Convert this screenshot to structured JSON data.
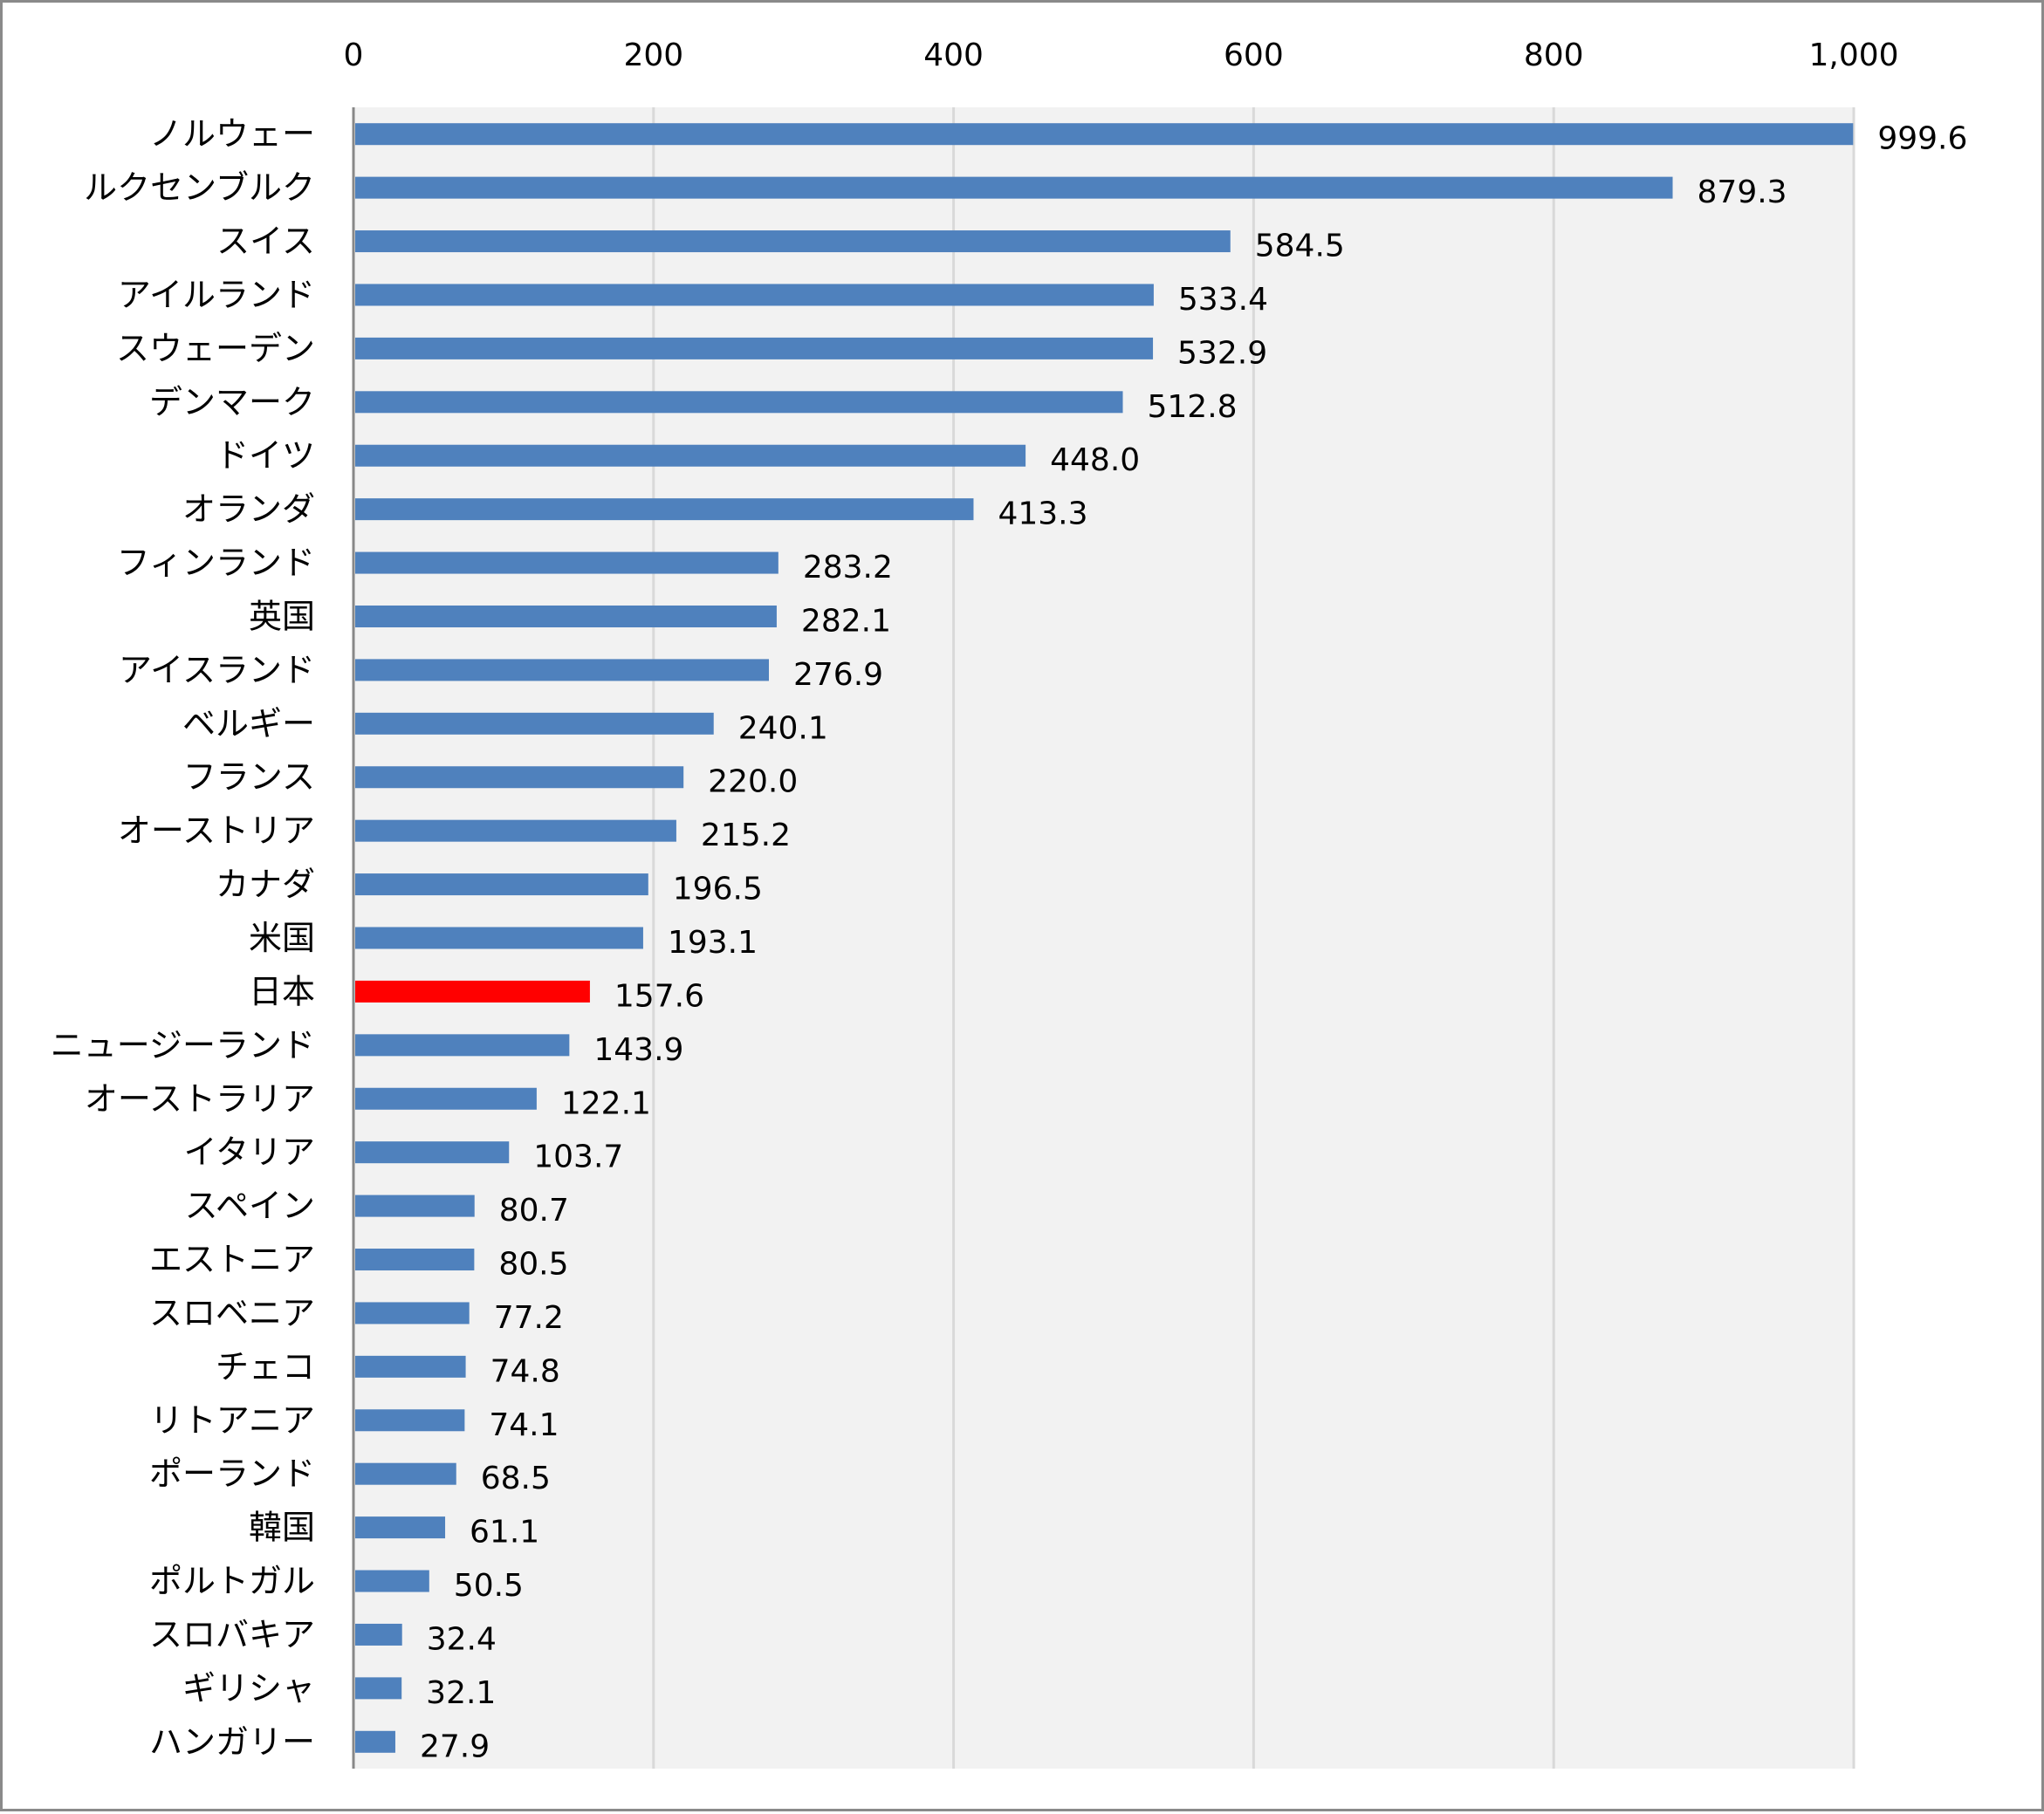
{
  "chart_data": {
    "type": "bar",
    "orientation": "horizontal",
    "title": "",
    "xlabel": "",
    "ylabel": "",
    "xlim": [
      0,
      1000
    ],
    "x_ticks": [
      "0",
      "200",
      "400",
      "600",
      "800",
      "1,000"
    ],
    "x_tick_values": [
      0,
      200,
      400,
      600,
      800,
      1000
    ],
    "x_axis_position": "top",
    "grid": true,
    "categories": [
      "ノルウェー",
      "ルクセンブルク",
      "スイス",
      "アイルランド",
      "スウェーデン",
      "デンマーク",
      "ドイツ",
      "オランダ",
      "フィンランド",
      "英国",
      "アイスランド",
      "ベルギー",
      "フランス",
      "オーストリア",
      "カナダ",
      "米国",
      "日本",
      "ニュージーランド",
      "オーストラリア",
      "イタリア",
      "スペイン",
      "エストニア",
      "スロベニア",
      "チェコ",
      "リトアニア",
      "ポーランド",
      "韓国",
      "ポルトガル",
      "スロバキア",
      "ギリシャ",
      "ハンガリー"
    ],
    "values": [
      999.6,
      879.3,
      584.5,
      533.4,
      532.9,
      512.8,
      448.0,
      413.3,
      283.2,
      282.1,
      276.9,
      240.1,
      220.0,
      215.2,
      196.5,
      193.1,
      157.6,
      143.9,
      122.1,
      103.7,
      80.7,
      80.5,
      77.2,
      74.8,
      74.1,
      68.5,
      61.1,
      50.5,
      32.4,
      32.1,
      27.9
    ],
    "value_labels": [
      "999.6",
      "879.3",
      "584.5",
      "533.4",
      "532.9",
      "512.8",
      "448.0",
      "413.3",
      "283.2",
      "282.1",
      "276.9",
      "240.1",
      "220.0",
      "215.2",
      "196.5",
      "193.1",
      "157.6",
      "143.9",
      "122.1",
      "103.7",
      "80.7",
      "80.5",
      "77.2",
      "74.8",
      "74.1",
      "68.5",
      "61.1",
      "50.5",
      "32.4",
      "32.1",
      "27.9"
    ],
    "highlight_category": "日本",
    "colors": {
      "bar": "#4F81BD",
      "highlight": "#FF0000",
      "plot_background": "#F2F2F2",
      "grid": "#D9D9D9",
      "axis": "#888888"
    }
  }
}
